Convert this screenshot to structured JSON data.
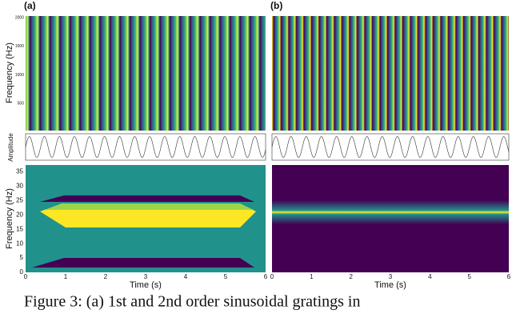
{
  "panels": [
    {
      "label": "(a)",
      "top_y_label": "Frequency (Hz)",
      "top_yticks": [
        "500",
        "1000",
        "1500",
        "2000"
      ],
      "amp_label": "Amplitude",
      "bottom_y_label": "Frequency (Hz)",
      "bottom_yticks": [
        "0",
        "5",
        "10",
        "15",
        "20",
        "25",
        "30",
        "35"
      ],
      "bottom_xticks": [
        "0",
        "1",
        "2",
        "3",
        "4",
        "5",
        "6"
      ],
      "x_label": "Time (s)"
    },
    {
      "label": "(b)",
      "bottom_xticks": [
        "0",
        "1",
        "2",
        "3",
        "4",
        "5",
        "6"
      ],
      "x_label": "Time (s)"
    }
  ],
  "caption": "Figure 3: (a) 1st and 2nd order sinusoidal gratings in"
}
